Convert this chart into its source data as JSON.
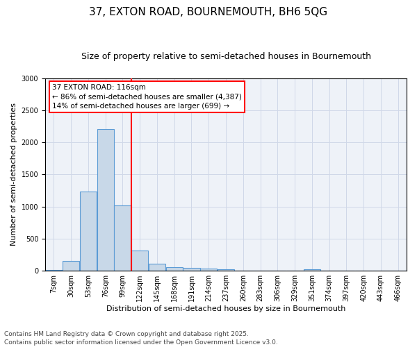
{
  "title_line1": "37, EXTON ROAD, BOURNEMOUTH, BH6 5QG",
  "title_line2": "Size of property relative to semi-detached houses in Bournemouth",
  "xlabel": "Distribution of semi-detached houses by size in Bournemouth",
  "ylabel": "Number of semi-detached properties",
  "footer_line1": "Contains HM Land Registry data © Crown copyright and database right 2025.",
  "footer_line2": "Contains public sector information licensed under the Open Government Licence v3.0.",
  "annotation_title": "37 EXTON ROAD: 116sqm",
  "annotation_line1": "← 86% of semi-detached houses are smaller (4,387)",
  "annotation_line2": "14% of semi-detached houses are larger (699) →",
  "subject_bin_index": 4,
  "bar_color": "#c8d8e8",
  "bar_edge_color": "#5b9bd5",
  "vline_color": "red",
  "grid_color": "#d0d8e8",
  "background_color": "#eef2f8",
  "categories": [
    "7sqm",
    "30sqm",
    "53sqm",
    "76sqm",
    "99sqm",
    "122sqm",
    "145sqm",
    "168sqm",
    "191sqm",
    "214sqm",
    "237sqm",
    "260sqm",
    "283sqm",
    "306sqm",
    "329sqm",
    "351sqm",
    "374sqm",
    "397sqm",
    "420sqm",
    "443sqm",
    "466sqm"
  ],
  "values": [
    15,
    150,
    1230,
    2210,
    1020,
    320,
    110,
    60,
    50,
    40,
    25,
    0,
    0,
    0,
    0,
    25,
    0,
    0,
    0,
    0,
    0
  ],
  "ylim": [
    0,
    3000
  ],
  "yticks": [
    0,
    500,
    1000,
    1500,
    2000,
    2500,
    3000
  ],
  "title_fontsize": 11,
  "subtitle_fontsize": 9,
  "label_fontsize": 8,
  "tick_fontsize": 7,
  "footer_fontsize": 6.5,
  "annotation_fontsize": 7.5
}
